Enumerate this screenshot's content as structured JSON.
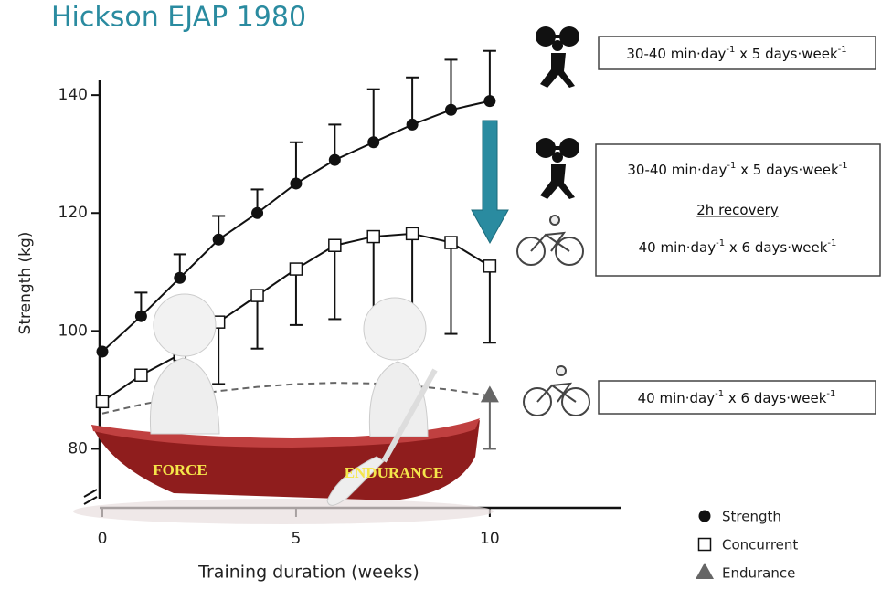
{
  "chart_data": {
    "type": "line",
    "title": "Hickson EJAP 1980",
    "x_label": "Training duration (weeks)",
    "y_label": "Strength (kg)",
    "x": [
      0,
      1,
      2,
      3,
      4,
      5,
      6,
      7,
      8,
      9,
      10
    ],
    "xlim": [
      0,
      13.4
    ],
    "xticks": [
      0,
      5,
      10
    ],
    "ylim": [
      70,
      142.5
    ],
    "yticks": [
      80,
      100,
      120,
      140
    ],
    "series": [
      {
        "name": "Strength",
        "color": "#111111",
        "marker": "circle",
        "line": "solid",
        "error_direction": "up",
        "values": [
          96.5,
          102.5,
          109,
          115.5,
          120,
          125,
          129,
          132,
          135,
          137.5,
          139
        ],
        "errors": [
          null,
          4,
          4,
          4,
          4,
          7,
          6,
          9,
          8,
          8.5,
          8.5
        ]
      },
      {
        "name": "Concurrent",
        "color": "#111111",
        "marker": "square",
        "line": "solid",
        "error_direction": "down",
        "values": [
          88,
          92.5,
          96,
          101.5,
          106,
          110.5,
          114.5,
          116,
          116.5,
          115,
          111
        ],
        "errors": [
          null,
          null,
          null,
          10.5,
          9,
          9.5,
          12.5,
          15,
          16,
          15.5,
          13
        ]
      },
      {
        "name": "Endurance",
        "color": "#666666",
        "marker": "triangle",
        "marker_at": "last",
        "line": "dashed",
        "error_direction": "down",
        "values": [
          86,
          87.5,
          88.8,
          89.8,
          90.5,
          91,
          91.2,
          91.1,
          90.7,
          90,
          89
        ],
        "errors": [
          null,
          null,
          null,
          null,
          null,
          null,
          null,
          null,
          null,
          null,
          9
        ]
      }
    ],
    "protocols": [
      {
        "lines": [
          [
            "30-40 min·day",
            "-1",
            " x 5 days·week",
            "-1"
          ]
        ]
      },
      {
        "lines": [
          [
            "30-40 min·day",
            "-1",
            " x 5 days·week",
            "-1"
          ],
          [
            "2h recovery"
          ],
          [
            "40 min·day",
            "-1",
            " x 6 days·week",
            "-1"
          ]
        ]
      },
      {
        "lines": [
          [
            "40 min·day",
            "-1",
            " x 6 days·week",
            "-1"
          ]
        ]
      }
    ],
    "canoe_labels": [
      "FORCE",
      "ENDURANCE"
    ]
  }
}
